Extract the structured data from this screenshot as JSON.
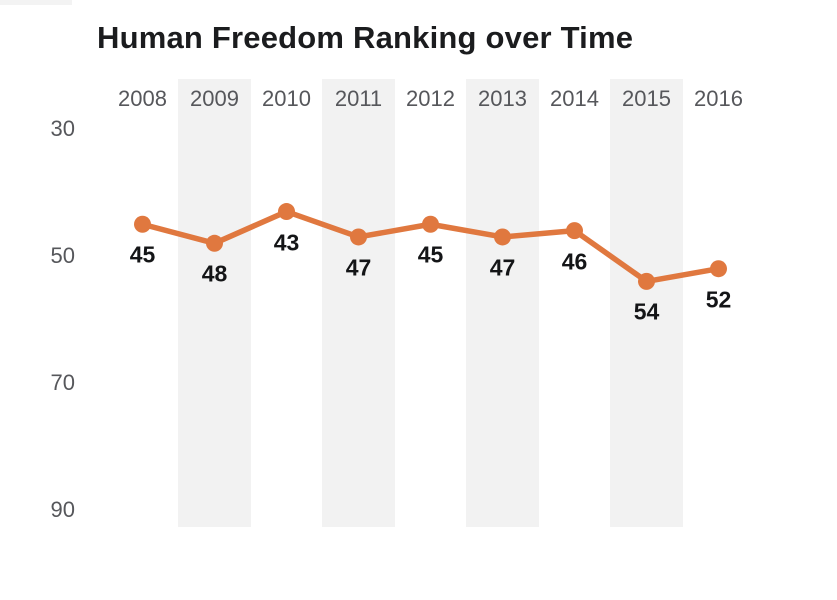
{
  "title": "Human Freedom Ranking over Time",
  "colors": {
    "line": "#e0783f",
    "band": "#f2f2f2",
    "value_label": "#141517",
    "axis_text": "#56575b",
    "title_text": "#1b1c1e"
  },
  "y_axis": {
    "ticks": [
      30,
      50,
      70,
      90
    ],
    "inverted": true
  },
  "chart_data": {
    "type": "line",
    "title": "Human Freedom Ranking over Time",
    "categories": [
      "2008",
      "2009",
      "2010",
      "2011",
      "2012",
      "2013",
      "2014",
      "2015",
      "2016"
    ],
    "values": [
      45,
      48,
      43,
      47,
      45,
      47,
      46,
      54,
      52
    ],
    "xlabel": "",
    "ylabel": "",
    "ylim": [
      30,
      90
    ],
    "y_ticks": [
      30,
      50,
      70,
      90
    ],
    "y_axis_inverted": true,
    "grid": false,
    "legend": false,
    "shaded_year_columns": [
      "2009",
      "2011",
      "2013",
      "2015"
    ],
    "point_labels_shown": true
  }
}
